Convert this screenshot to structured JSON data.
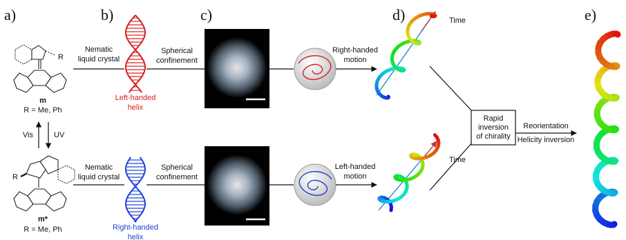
{
  "panel_labels": [
    "a)",
    "b)",
    "c)",
    "d)",
    "e)"
  ],
  "top": {
    "molecule": {
      "substituent": "R",
      "name": "m",
      "note": "R = Me, Ph"
    },
    "step1": [
      "Nematic",
      "liquid crystal"
    ],
    "helix": [
      "Left-handed",
      "helix"
    ],
    "step2": [
      "Spherical",
      "confinement"
    ],
    "motion": [
      "Right-handed",
      "motion"
    ],
    "axis": "Time"
  },
  "switch": {
    "left": "Vis",
    "right": "UV"
  },
  "bottom": {
    "molecule": {
      "substituent": "R",
      "name": "m*",
      "note": "R = Me, Ph"
    },
    "step1": [
      "Nematic",
      "liquid crystal"
    ],
    "helix": [
      "Right-handed",
      "helix"
    ],
    "step2": [
      "Spherical",
      "confinement"
    ],
    "motion": [
      "Left-handed",
      "motion"
    ],
    "axis": "Time"
  },
  "junction": {
    "box": [
      "Rapid",
      "inversion",
      "of chirality"
    ],
    "above": "Reorientation",
    "below": "Helicity inversion"
  }
}
